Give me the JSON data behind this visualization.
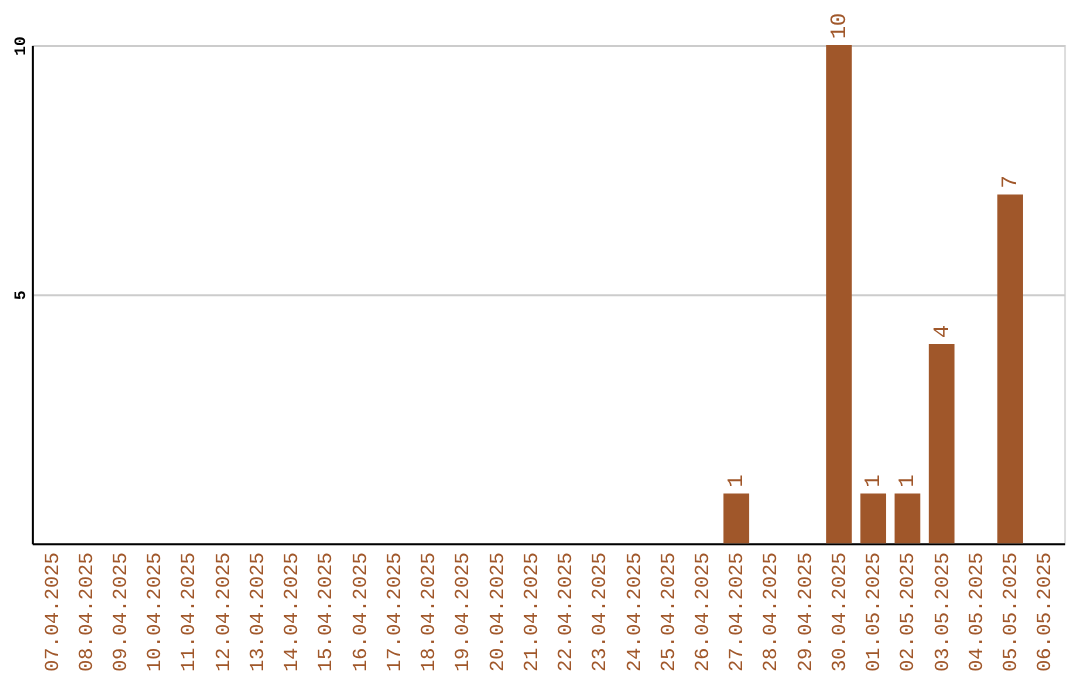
{
  "chart_data": {
    "type": "bar",
    "categories": [
      "07.04.2025",
      "08.04.2025",
      "09.04.2025",
      "10.04.2025",
      "11.04.2025",
      "12.04.2025",
      "13.04.2025",
      "14.04.2025",
      "15.04.2025",
      "16.04.2025",
      "17.04.2025",
      "18.04.2025",
      "19.04.2025",
      "20.04.2025",
      "21.04.2025",
      "22.04.2025",
      "23.04.2025",
      "24.04.2025",
      "25.04.2025",
      "26.04.2025",
      "27.04.2025",
      "28.04.2025",
      "29.04.2025",
      "30.04.2025",
      "01.05.2025",
      "02.05.2025",
      "03.05.2025",
      "04.05.2025",
      "05.05.2025",
      "06.05.2025"
    ],
    "values": [
      0,
      0,
      0,
      0,
      0,
      0,
      0,
      0,
      0,
      0,
      0,
      0,
      0,
      0,
      0,
      0,
      0,
      0,
      0,
      0,
      1,
      0,
      0,
      10,
      1,
      1,
      4,
      0,
      7,
      0
    ],
    "value_labels": [
      null,
      null,
      null,
      null,
      null,
      null,
      null,
      null,
      null,
      null,
      null,
      null,
      null,
      null,
      null,
      null,
      null,
      null,
      null,
      null,
      "1",
      null,
      null,
      "10",
      "1",
      "1",
      "4",
      null,
      "7",
      null
    ],
    "color": "#a0572a",
    "ylim": [
      0,
      10
    ],
    "yticks": [
      5,
      10
    ],
    "grid": "y"
  }
}
